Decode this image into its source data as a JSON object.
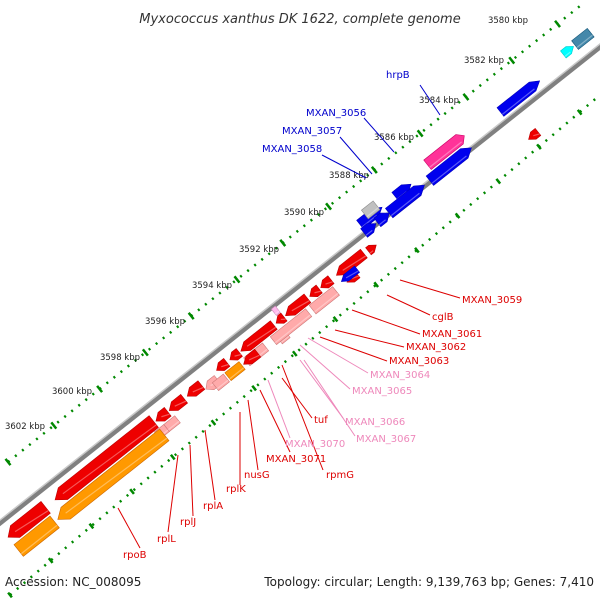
{
  "title": "Myxococcus xanthus DK 1622, complete genome",
  "footer": {
    "accession": "Accession: NC_008095",
    "summary": "Topology: circular; Length: 9,139,763 bp; Genes: 7,410"
  },
  "colors": {
    "forward": "#0000ee",
    "reverse": "#ee0000",
    "rna": "#ff9900",
    "pseudo_light": "#ffaaaa",
    "pink": "#ff3399",
    "gray": "#c0c0c0",
    "cyan": "#00ffff",
    "backbone": "#808080",
    "ticks": "#00a000"
  },
  "ticks": [
    "3580 kbp",
    "3582 kbp",
    "3584 kbp",
    "3586 kbp",
    "3588 kbp",
    "3590 kbp",
    "3592 kbp",
    "3594 kbp",
    "3596 kbp",
    "3598 kbp",
    "3600 kbp",
    "3602 kbp"
  ],
  "labels_forward": [
    "hrpB",
    "MXAN_3056",
    "MXAN_3057",
    "MXAN_3058"
  ],
  "labels_reverse": [
    "MXAN_3059",
    "cglB",
    "MXAN_3061",
    "MXAN_3062",
    "MXAN_3063",
    "tuf",
    "MXAN_3071",
    "rpmG",
    "nusG",
    "rplK",
    "rplA",
    "rplJ",
    "rplL",
    "rpoB"
  ],
  "labels_rna": [
    "MXAN_3064",
    "MXAN_3065",
    "MXAN_3066",
    "MXAN_3067",
    "MXAN_3070"
  ]
}
